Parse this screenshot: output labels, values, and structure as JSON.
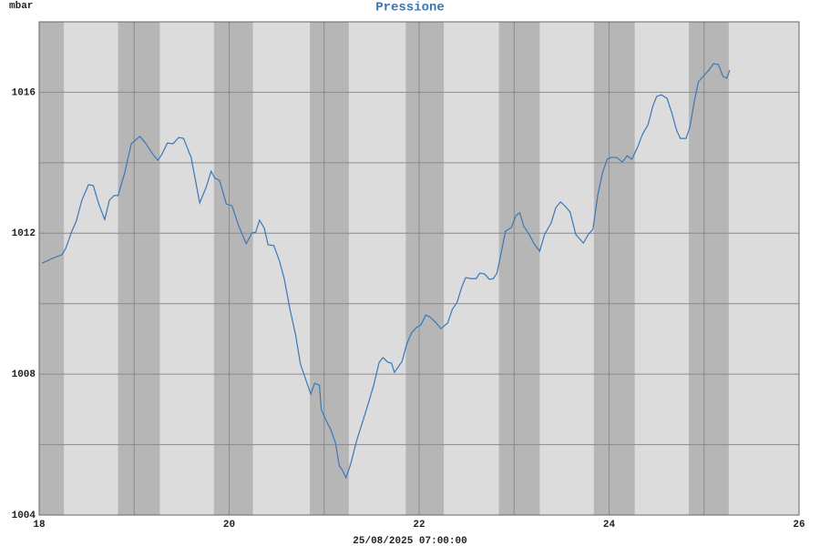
{
  "chart_data": {
    "type": "line",
    "title": "Pressione",
    "y_label": "mbar",
    "x_label": "25/08/2025 07:00:00",
    "color": "#3a78b5",
    "xlim": [
      18,
      26
    ],
    "xticks": [
      18,
      20,
      22,
      24,
      26
    ],
    "xminor": [
      19,
      21,
      23,
      25
    ],
    "ylim": [
      1004,
      1018
    ],
    "yticks": [
      1004,
      1008,
      1012,
      1016
    ],
    "yminor": [
      1006,
      1010,
      1014
    ],
    "grid": true,
    "night": [
      [
        18,
        18.26
      ],
      [
        18.83,
        19.27
      ],
      [
        19.84,
        20.25
      ],
      [
        20.85,
        21.26
      ],
      [
        21.86,
        22.26
      ],
      [
        22.84,
        23.27
      ],
      [
        23.84,
        24.27
      ],
      [
        24.84,
        25.26
      ]
    ],
    "x": [
      18.03,
      18.16,
      18.24,
      18.28,
      18.34,
      18.39,
      18.45,
      18.52,
      18.57,
      18.63,
      18.69,
      18.74,
      18.79,
      18.83,
      18.9,
      18.97,
      19.06,
      19.12,
      19.2,
      19.25,
      19.29,
      19.35,
      19.41,
      19.47,
      19.52,
      19.6,
      19.69,
      19.76,
      19.81,
      19.85,
      19.9,
      19.97,
      20.03,
      20.1,
      20.18,
      20.24,
      20.28,
      20.32,
      20.37,
      20.41,
      20.47,
      20.53,
      20.58,
      20.64,
      20.7,
      20.75,
      20.81,
      20.86,
      20.9,
      20.95,
      20.97,
      21.02,
      21.07,
      21.12,
      21.16,
      21.19,
      21.23,
      21.28,
      21.34,
      21.41,
      21.46,
      21.52,
      21.58,
      21.62,
      21.67,
      21.71,
      21.74,
      21.82,
      21.87,
      21.92,
      21.97,
      22.02,
      22.07,
      22.11,
      22.17,
      22.23,
      22.3,
      22.35,
      22.4,
      22.45,
      22.49,
      22.55,
      22.6,
      22.64,
      22.69,
      22.74,
      22.78,
      22.82,
      22.86,
      22.91,
      22.97,
      23.02,
      23.06,
      23.1,
      23.16,
      23.21,
      23.27,
      23.32,
      23.39,
      23.44,
      23.49,
      23.54,
      23.59,
      23.65,
      23.73,
      23.78,
      23.83,
      23.88,
      23.93,
      23.98,
      24.02,
      24.08,
      24.14,
      24.19,
      24.24,
      24.3,
      24.35,
      24.41,
      24.46,
      24.5,
      24.55,
      24.61,
      24.66,
      24.71,
      24.75,
      24.81,
      24.85,
      24.9,
      24.94,
      25,
      25.05,
      25.1,
      25.15,
      25.2,
      25.24,
      25.27
    ],
    "values": [
      1011.15,
      1011.31,
      1011.39,
      1011.57,
      1012.03,
      1012.34,
      1012.94,
      1013.38,
      1013.35,
      1012.81,
      1012.39,
      1012.94,
      1013.07,
      1013.07,
      1013.71,
      1014.54,
      1014.75,
      1014.56,
      1014.23,
      1014.07,
      1014.23,
      1014.56,
      1014.54,
      1014.72,
      1014.69,
      1014.15,
      1012.86,
      1013.32,
      1013.76,
      1013.56,
      1013.5,
      1012.83,
      1012.78,
      1012.21,
      1011.7,
      1012.01,
      1012.03,
      1012.37,
      1012.14,
      1011.67,
      1011.65,
      1011.21,
      1010.71,
      1009.84,
      1009.11,
      1008.29,
      1007.82,
      1007.43,
      1007.74,
      1007.69,
      1007,
      1006.69,
      1006.43,
      1006.04,
      1005.39,
      1005.29,
      1005.06,
      1005.45,
      1006.09,
      1006.69,
      1007.12,
      1007.67,
      1008.34,
      1008.47,
      1008.34,
      1008.31,
      1008.05,
      1008.36,
      1008.86,
      1009.17,
      1009.32,
      1009.4,
      1009.68,
      1009.63,
      1009.48,
      1009.29,
      1009.45,
      1009.84,
      1010.04,
      1010.48,
      1010.74,
      1010.71,
      1010.71,
      1010.87,
      1010.84,
      1010.69,
      1010.71,
      1010.87,
      1011.39,
      1012.06,
      1012.16,
      1012.5,
      1012.58,
      1012.21,
      1011.96,
      1011.7,
      1011.49,
      1011.96,
      1012.29,
      1012.73,
      1012.89,
      1012.76,
      1012.6,
      1011.96,
      1011.72,
      1011.96,
      1012.11,
      1013.07,
      1013.71,
      1014.1,
      1014.15,
      1014.15,
      1014.02,
      1014.2,
      1014.1,
      1014.44,
      1014.8,
      1015.08,
      1015.6,
      1015.88,
      1015.93,
      1015.83,
      1015.42,
      1014.93,
      1014.69,
      1014.69,
      1015,
      1015.78,
      1016.3,
      1016.48,
      1016.63,
      1016.81,
      1016.79,
      1016.45,
      1016.4,
      1016.63
    ]
  }
}
